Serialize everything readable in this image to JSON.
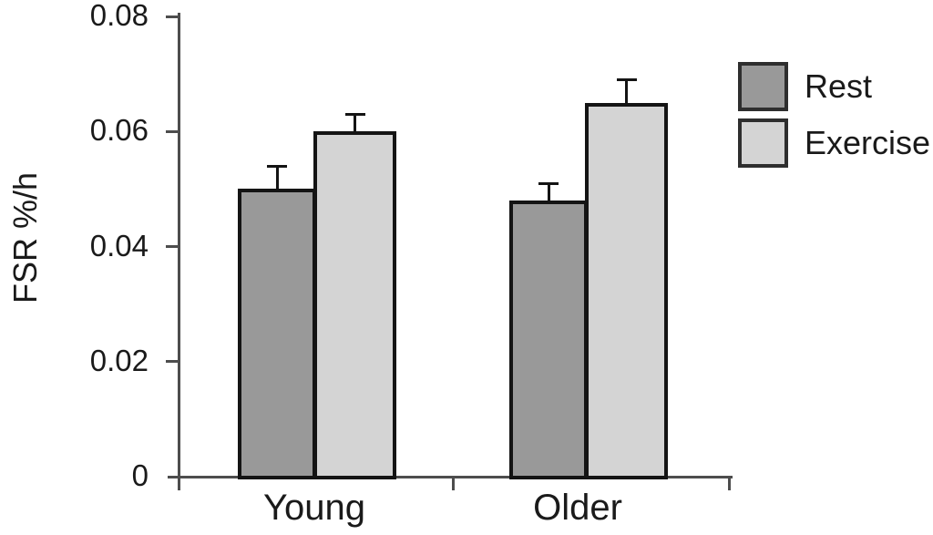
{
  "chart_data": {
    "type": "bar",
    "title": "",
    "ylabel": "FSR %/h",
    "xlabel": "",
    "categories": [
      "Young",
      "Older"
    ],
    "series": [
      {
        "name": "Rest",
        "color": "#999999",
        "values": [
          0.05,
          0.048
        ],
        "errors": [
          0.004,
          0.003
        ]
      },
      {
        "name": "Exercise",
        "color": "#d4d4d4",
        "values": [
          0.06,
          0.065
        ],
        "errors": [
          0.003,
          0.004
        ]
      }
    ],
    "ylim": [
      0,
      0.08
    ],
    "yticks": [
      0,
      0.02,
      0.04,
      0.06,
      0.08
    ],
    "ytick_labels": [
      "0",
      "0.02",
      "0.04",
      "0.06",
      "0.08"
    ],
    "grid": false,
    "legend_position": "top-right",
    "error_bars": "upper-only",
    "bar_border_color": "#141414",
    "error_bar_color": "#141414",
    "legend_border_color": "#2e2e2e",
    "axis_color": "#4d4d4d",
    "text_color": "#1a1a1a",
    "background": "#ffffff"
  }
}
